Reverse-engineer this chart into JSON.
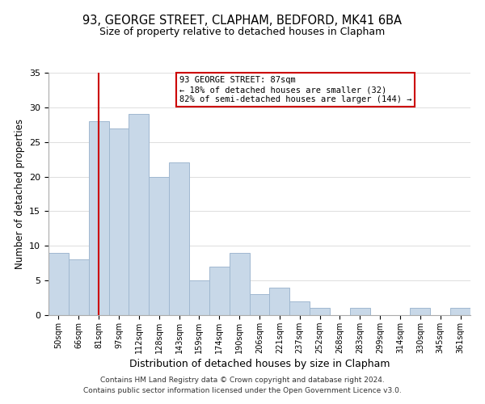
{
  "title": "93, GEORGE STREET, CLAPHAM, BEDFORD, MK41 6BA",
  "subtitle": "Size of property relative to detached houses in Clapham",
  "xlabel": "Distribution of detached houses by size in Clapham",
  "ylabel": "Number of detached properties",
  "footer_lines": [
    "Contains HM Land Registry data © Crown copyright and database right 2024.",
    "Contains public sector information licensed under the Open Government Licence v3.0."
  ],
  "bin_labels": [
    "50sqm",
    "66sqm",
    "81sqm",
    "97sqm",
    "112sqm",
    "128sqm",
    "143sqm",
    "159sqm",
    "174sqm",
    "190sqm",
    "206sqm",
    "221sqm",
    "237sqm",
    "252sqm",
    "268sqm",
    "283sqm",
    "299sqm",
    "314sqm",
    "330sqm",
    "345sqm",
    "361sqm"
  ],
  "counts": [
    9,
    8,
    28,
    27,
    29,
    20,
    22,
    5,
    7,
    9,
    3,
    4,
    2,
    1,
    0,
    1,
    0,
    0,
    1,
    0,
    1
  ],
  "bar_color": "#c8d8e8",
  "bar_edge_color": "#a0b8d0",
  "vline_index": 2.5,
  "property_line_label": "93 GEORGE STREET: 87sqm",
  "annotation_line1": "← 18% of detached houses are smaller (32)",
  "annotation_line2": "82% of semi-detached houses are larger (144) →",
  "annotation_box_color": "#ffffff",
  "annotation_box_edge": "#cc0000",
  "vline_color": "#cc0000",
  "ylim": [
    0,
    35
  ],
  "yticks": [
    0,
    5,
    10,
    15,
    20,
    25,
    30,
    35
  ],
  "title_fontsize": 10.5,
  "subtitle_fontsize": 9,
  "ylabel_fontsize": 8.5,
  "xlabel_fontsize": 9
}
